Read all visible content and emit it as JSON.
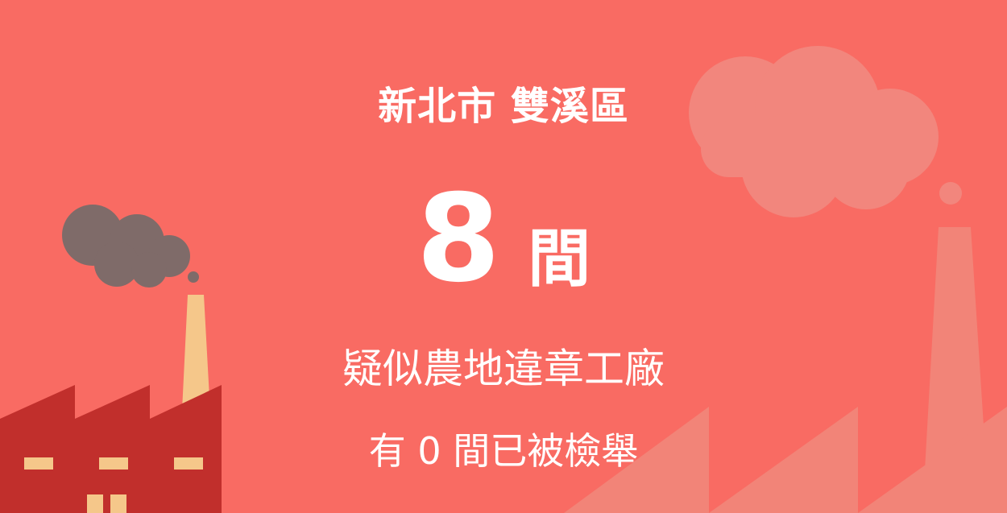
{
  "location": "新北市 雙溪區",
  "count": {
    "number": "8",
    "unit": "間"
  },
  "description": "疑似農地違章工廠",
  "reported_line": "有 0 間已被檢舉",
  "colors": {
    "background": "#f96b63",
    "text": "#ffffff",
    "factory": "#c12f2c",
    "window": "#f5c78a",
    "chimney": "#f5c78a",
    "smoke_dark": "#7f6b69",
    "cloud_light": "#f2867d",
    "factory_light": "#f28478"
  },
  "icons": [
    "factory-icon",
    "chimney-icon",
    "smoke-cloud-icon",
    "cloud-icon"
  ]
}
